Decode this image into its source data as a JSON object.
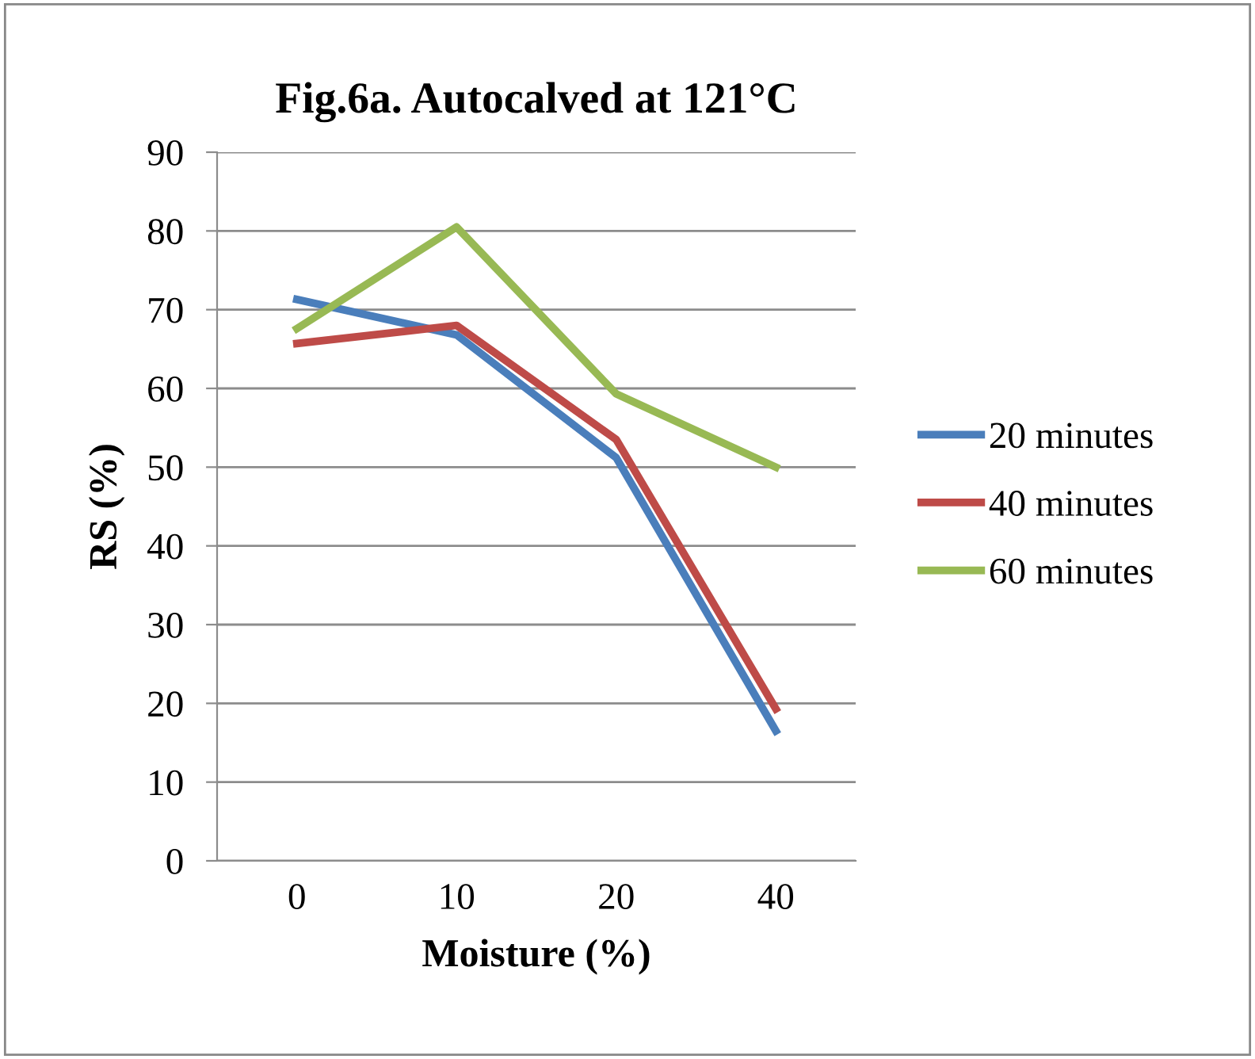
{
  "chart_data": {
    "type": "line",
    "title": "Fig.6a. Autocalved at 121°C",
    "xlabel": "Moisture (%)",
    "ylabel": "RS (%)",
    "categories": [
      "0",
      "10",
      "20",
      "40"
    ],
    "series": [
      {
        "name": "20 minutes",
        "color": "#4a7ebb",
        "values": [
          71.3,
          66.8,
          51.2,
          16.5
        ]
      },
      {
        "name": "40 minutes",
        "color": "#be4b48",
        "values": [
          65.7,
          68.0,
          53.5,
          19.3
        ]
      },
      {
        "name": "60 minutes",
        "color": "#98b954",
        "values": [
          67.6,
          80.5,
          59.3,
          50.0
        ]
      }
    ],
    "ylim": [
      0,
      90
    ],
    "yticks": [
      0,
      10,
      20,
      30,
      40,
      50,
      60,
      70,
      80,
      90
    ],
    "grid": "y",
    "legend": "right",
    "marker": "none",
    "line_style": "solid"
  }
}
